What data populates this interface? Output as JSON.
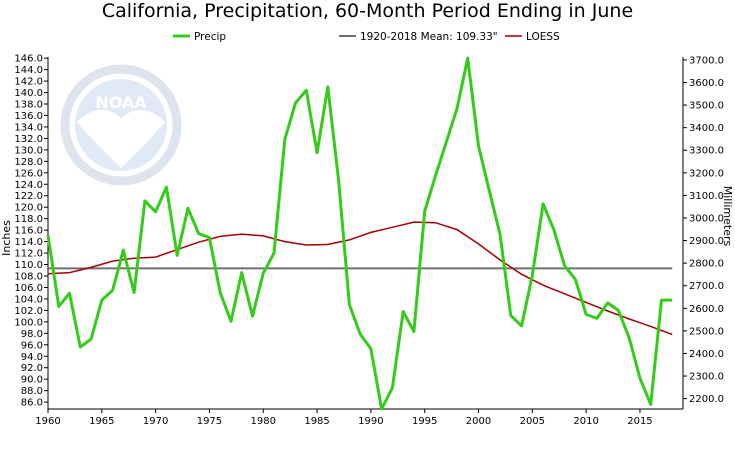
{
  "chart_data": {
    "type": "line",
    "title": "California, Precipitation, 60-Month Period Ending in June",
    "ylabel": "Inches",
    "y2label": "Millimeters",
    "xlabel": "",
    "xlim": [
      1960,
      2019
    ],
    "ylim": [
      84.8,
      146.2
    ],
    "y2lim": [
      2154,
      3713
    ],
    "x_ticks": [
      "1960",
      "1965",
      "1970",
      "1975",
      "1980",
      "1985",
      "1990",
      "1995",
      "2000",
      "2005",
      "2010",
      "2015"
    ],
    "y_ticks": [
      "86.0",
      "88.0",
      "90.0",
      "92.0",
      "94.0",
      "96.0",
      "98.0",
      "100.0",
      "102.0",
      "104.0",
      "106.0",
      "108.0",
      "110.0",
      "112.0",
      "114.0",
      "116.0",
      "118.0",
      "120.0",
      "122.0",
      "124.0",
      "126.0",
      "128.0",
      "130.0",
      "132.0",
      "134.0",
      "136.0",
      "138.0",
      "140.0",
      "142.0",
      "144.0",
      "146.0"
    ],
    "y2_ticks": [
      "2200.0",
      "2300.0",
      "2400.0",
      "2500.0",
      "2600.0",
      "2700.0",
      "2800.0",
      "2900.0",
      "3000.0",
      "3100.0",
      "3200.0",
      "3300.0",
      "3400.0",
      "3500.0",
      "3600.0",
      "3700.0"
    ],
    "grid": false,
    "legend_position": "top",
    "colors": {
      "precip": "#33cc19",
      "mean": "#707070",
      "loess": "#aa0000"
    },
    "series": [
      {
        "name": "Precip",
        "x": [
          1960,
          1961,
          1962,
          1963,
          1964,
          1965,
          1966,
          1967,
          1968,
          1969,
          1970,
          1971,
          1972,
          1973,
          1974,
          1975,
          1976,
          1977,
          1978,
          1979,
          1980,
          1981,
          1982,
          1983,
          1984,
          1985,
          1986,
          1987,
          1988,
          1989,
          1990,
          1991,
          1992,
          1993,
          1994,
          1995,
          1996,
          1997,
          1998,
          1999,
          2000,
          2001,
          2002,
          2003,
          2004,
          2005,
          2006,
          2007,
          2008,
          2009,
          2010,
          2011,
          2012,
          2013,
          2014,
          2015,
          2016,
          2017,
          2018
        ],
        "values": [
          115.1,
          102.7,
          105.0,
          95.6,
          97.0,
          103.8,
          105.5,
          112.5,
          105.1,
          121.1,
          119.2,
          123.5,
          111.6,
          119.8,
          115.4,
          114.7,
          105.1,
          100.1,
          108.6,
          101.0,
          108.5,
          112.0,
          131.8,
          138.2,
          140.4,
          129.5,
          141.0,
          124.7,
          103.0,
          97.9,
          95.3,
          84.8,
          88.5,
          101.8,
          98.3,
          119.3,
          125.5,
          131.3,
          137.2,
          146.0,
          130.7,
          122.9,
          115.3,
          101.1,
          99.3,
          108.1,
          120.6,
          116.1,
          109.8,
          107.4,
          101.3,
          100.6,
          103.3,
          102.0,
          97.2,
          90.2,
          85.6,
          103.8,
          103.8
        ]
      },
      {
        "name": "1920-2018 Mean: 109.33\"",
        "x": [
          1960,
          2018
        ],
        "values": [
          109.33,
          109.33
        ]
      },
      {
        "name": "LOESS",
        "x": [
          1960,
          1962,
          1964,
          1966,
          1968,
          1970,
          1972,
          1974,
          1976,
          1978,
          1980,
          1982,
          1984,
          1986,
          1988,
          1990,
          1992,
          1994,
          1996,
          1998,
          2000,
          2002,
          2004,
          2006,
          2008,
          2010,
          2012,
          2014,
          2016,
          2018
        ],
        "values": [
          108.4,
          108.6,
          109.5,
          110.6,
          111.1,
          111.3,
          112.6,
          113.9,
          114.9,
          115.3,
          115.0,
          114.0,
          113.4,
          113.5,
          114.3,
          115.6,
          116.5,
          117.4,
          117.3,
          116.1,
          113.6,
          110.8,
          108.3,
          106.4,
          104.9,
          103.4,
          101.9,
          100.5,
          99.2,
          97.8
        ]
      }
    ]
  }
}
